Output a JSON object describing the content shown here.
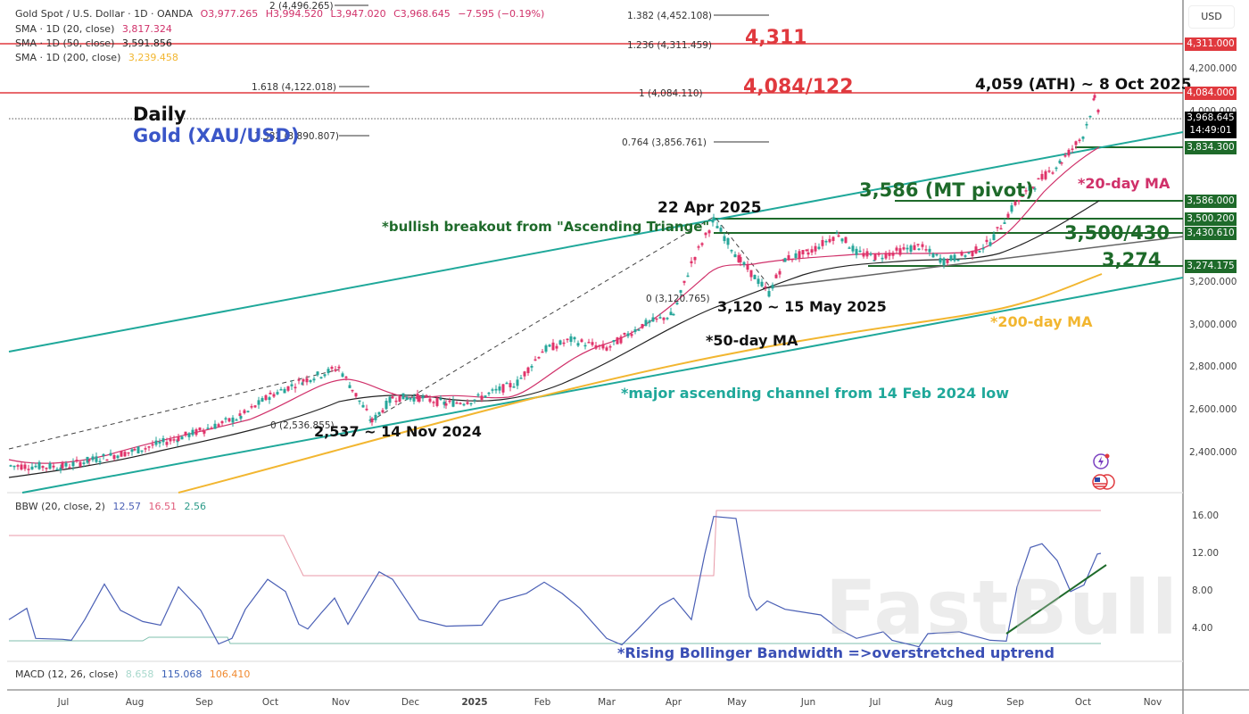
{
  "header": {
    "symbol": "Gold Spot / U.S. Dollar · 1D · OANDA",
    "ohlc": {
      "open": "O3,977.265",
      "high": "H3,994.520",
      "low": "L3,947.020",
      "close": "C3,968.645",
      "change": "−7.595 (−0.19%)"
    },
    "indicators": [
      {
        "label": "SMA · 1D (20, close)",
        "value": "3,817.324",
        "color": "#d0316a"
      },
      {
        "label": "SMA · 1D (50, close)",
        "value": "3,591.856",
        "color": "#222222"
      },
      {
        "label": "SMA · 1D (200, close)",
        "value": "3,239.458",
        "color": "#f2b630"
      }
    ]
  },
  "title": {
    "timeframe": "Daily",
    "instrument": "Gold (XAU/USD)"
  },
  "currency_button": "USD",
  "price_tags": [
    {
      "text": "4,311.000",
      "price": 4311,
      "color": "#e0393e"
    },
    {
      "text": "4,084.000",
      "price": 4084,
      "color": "#e0393e"
    },
    {
      "text": "3,968.645",
      "sub": "14:49:01",
      "price": 3968.645,
      "color": "#000000"
    },
    {
      "text": "3,834.300",
      "price": 3834.3,
      "color": "#1e6a2a"
    },
    {
      "text": "3,586.000",
      "price": 3586,
      "color": "#1e6a2a"
    },
    {
      "text": "3,500.200",
      "price": 3500.2,
      "color": "#1e6a2a"
    },
    {
      "text": "3,430.610",
      "price": 3430.61,
      "color": "#1e6a2a"
    },
    {
      "text": "3,274.175",
      "price": 3274.175,
      "color": "#1e6a2a"
    }
  ],
  "annotations": {
    "res_4311": "4,311",
    "res_4084": "4,084/122",
    "ath": "4,059 (ATH) ~ 8 Oct 2025",
    "mt_pivot": "3,586 (MT pivot)",
    "ma20": "*20-day MA",
    "sup_3500": "3,500/430",
    "sup_3274": "3,274",
    "apr22": "22 Apr 2025",
    "breakout": "*bullish breakout from \"Ascending Triange\"",
    "may15": "3,120 ~ 15 May 2025",
    "ma50": "*50-day MA",
    "ma200": "*200-day MA",
    "channel": "*major ascending channel from 14 Feb 2024 low",
    "nov14": "2,537 ~ 14 Nov 2024",
    "bbw_note": "*Rising Bollinger Bandwidth =>overstretched uptrend"
  },
  "fib_levels": [
    {
      "label": "2 (4,496.265)"
    },
    {
      "label": "1.382 (4,452.108)"
    },
    {
      "label": "1.236 (4,311.459)"
    },
    {
      "label": "1.618 (4,122.018)"
    },
    {
      "label": "1 (4,084.110)"
    },
    {
      "label": "1.382 (3,890.807)"
    },
    {
      "label": "0.764 (3,856.761)"
    },
    {
      "label": "0 (3,120.765)"
    },
    {
      "label": "0 (2,536.855)"
    }
  ],
  "bbw_legend": {
    "label": "BBW (20, close, 2)",
    "v1": "12.57",
    "v2": "16.51",
    "v3": "2.56"
  },
  "macd_legend": {
    "label": "MACD (12, 26, close)",
    "v1": "8.658",
    "v2": "115.068",
    "v3": "106.410"
  },
  "watermark": "FastBull",
  "chart_data": [
    {
      "type": "candlestick",
      "title": "Gold Spot / U.S. Dollar · 1D · OANDA — Daily Gold (XAU/USD)",
      "xlabel": "",
      "ylabel": "USD",
      "x_ticks": [
        "Jul",
        "Aug",
        "Sep",
        "Oct",
        "Nov",
        "Dec",
        "2025",
        "Feb",
        "Mar",
        "Apr",
        "May",
        "Jun",
        "Jul",
        "Aug",
        "Sep",
        "Oct",
        "Nov"
      ],
      "y_ticks": [
        2400,
        2600,
        2800,
        3000,
        3200,
        4000,
        4200
      ],
      "ylim": [
        2280,
        4520
      ],
      "last": {
        "open": 3977.265,
        "high": 3994.52,
        "low": 3947.02,
        "close": 3968.645,
        "change": -7.595,
        "change_pct": -0.19
      },
      "approx_close_path": {
        "x": [
          "Jul 2024",
          "Aug 2024",
          "Sep 2024",
          "Oct 2024",
          "Oct 30 2024",
          "Nov 14 2024",
          "Dec 2024",
          "2025",
          "Feb 2025",
          "Mar 2025",
          "Apr 2025",
          "Apr 22 2025",
          "May 15 2025",
          "Jun 2025",
          "Jul 2025",
          "Aug 2025",
          "Sep 2025",
          "Oct 8 2025",
          "Oct 2025 (last)"
        ],
        "values": [
          2330,
          2400,
          2500,
          2660,
          2790,
          2537,
          2640,
          2640,
          2870,
          2920,
          3040,
          3500,
          3120,
          3380,
          3330,
          3350,
          3600,
          4059,
          3968.645
        ]
      },
      "series": [
        {
          "name": "SMA 20",
          "last": 3817.324,
          "color": "#d0316a"
        },
        {
          "name": "SMA 50",
          "last": 3591.856,
          "color": "#222222"
        },
        {
          "name": "SMA 200",
          "last": 3239.458,
          "color": "#f2b630"
        }
      ],
      "horizontal_levels": [
        4311,
        4084,
        3834.3,
        3586,
        3500.2,
        3430.61,
        3274.175
      ],
      "fibonacci": [
        {
          "ratio": 2,
          "price": 4496.265
        },
        {
          "ratio": 1.382,
          "price": 4452.108
        },
        {
          "ratio": 1.236,
          "price": 4311.459
        },
        {
          "ratio": 1.618,
          "price": 4122.018
        },
        {
          "ratio": 1,
          "price": 4084.11
        },
        {
          "ratio": 1.382,
          "price": 3890.807
        },
        {
          "ratio": 0.764,
          "price": 3856.761
        },
        {
          "ratio": 0,
          "price": 3120.765
        },
        {
          "ratio": 0,
          "price": 2536.855
        }
      ],
      "annotations": [
        "4,311",
        "4,084/122",
        "4,059 (ATH) ~ 8 Oct 2025",
        "3,586 (MT pivot)",
        "*20-day MA",
        "3,500/430",
        "3,274",
        "22 Apr 2025",
        "*bullish breakout from \"Ascending Triange\"",
        "3,120 ~ 15 May 2025",
        "*50-day MA",
        "*200-day MA",
        "*major ascending channel from 14 Feb 2024 low",
        "2,537 ~ 14 Nov 2024"
      ],
      "grid": false,
      "legend_position": "top-left"
    },
    {
      "type": "line",
      "title": "BBW (20, close, 2)",
      "y_ticks": [
        4,
        8,
        12,
        16
      ],
      "ylim": [
        1,
        17.5
      ],
      "series": [
        {
          "name": "BBW",
          "last": 12.57,
          "color": "#4a5fb5",
          "x": [
            "Jun 2024",
            "Jul 2024",
            "Aug 2024",
            "Sep 2024",
            "Oct 2024",
            "Nov 2024",
            "Dec 2024",
            "2025",
            "Feb 2025",
            "Mar 2025",
            "Apr 2025",
            "Apr 22 2025",
            "May 2025",
            "Jun 2025",
            "Jul 2025",
            "Aug 2025",
            "Sep 2025",
            "Sep 20 2025",
            "Oct 2025",
            "Oct (last)"
          ],
          "values": [
            5.5,
            3.5,
            8.5,
            5.2,
            2.8,
            9.8,
            5.0,
            7.8,
            5.3,
            2.8,
            9.0,
            16.51,
            7.5,
            7.0,
            3.3,
            4.2,
            3.5,
            13.6,
            8.5,
            12.57
          ]
        },
        {
          "name": "Highest",
          "last": 16.51,
          "color": "#e89aa8"
        },
        {
          "name": "Lowest",
          "last": 2.56,
          "color": "#7fbfae"
        }
      ],
      "annotations": [
        "*Rising Bollinger Bandwidth =>overstretched uptrend"
      ]
    },
    {
      "type": "line",
      "title": "MACD (12, 26, close)",
      "series": [
        {
          "name": "Histogram",
          "last": 8.658
        },
        {
          "name": "MACD",
          "last": 115.068
        },
        {
          "name": "Signal",
          "last": 106.41
        }
      ]
    }
  ]
}
